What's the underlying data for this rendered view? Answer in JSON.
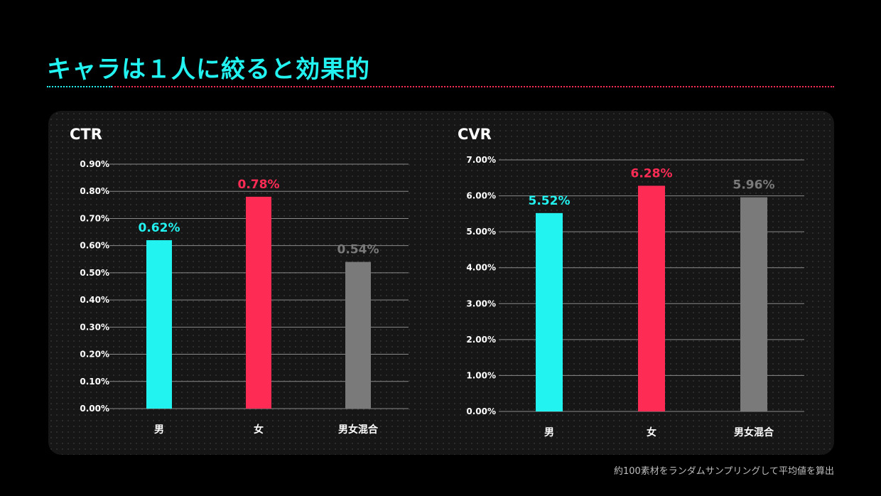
{
  "title": "キャラは１人に絞ると効果的",
  "footnote": "約100素材をランダムサンプリングして平均値を算出",
  "colors": {
    "title": "#22F2F0",
    "male": "#22F2F0",
    "female": "#FE2C55",
    "mixed": "#7A7A7A",
    "axis_text": "#FFFFFF",
    "grid": "#8A8A8A"
  },
  "chart_data": [
    {
      "type": "bar",
      "title": "CTR",
      "categories": [
        "男",
        "女",
        "男女混合"
      ],
      "values": [
        0.62,
        0.78,
        0.54
      ],
      "value_labels": [
        "0.62%",
        "0.78%",
        "0.54%"
      ],
      "ylim": [
        0,
        0.9
      ],
      "yticks": [
        "0.00%",
        "0.10%",
        "0.20%",
        "0.30%",
        "0.40%",
        "0.50%",
        "0.60%",
        "0.70%",
        "0.80%",
        "0.90%"
      ],
      "grid": true
    },
    {
      "type": "bar",
      "title": "CVR",
      "categories": [
        "男",
        "女",
        "男女混合"
      ],
      "values": [
        5.52,
        6.28,
        5.96
      ],
      "value_labels": [
        "5.52%",
        "6.28%",
        "5.96%"
      ],
      "ylim": [
        0,
        7
      ],
      "yticks": [
        "0.00%",
        "1.00%",
        "2.00%",
        "3.00%",
        "4.00%",
        "5.00%",
        "6.00%",
        "7.00%"
      ],
      "grid": true
    }
  ]
}
